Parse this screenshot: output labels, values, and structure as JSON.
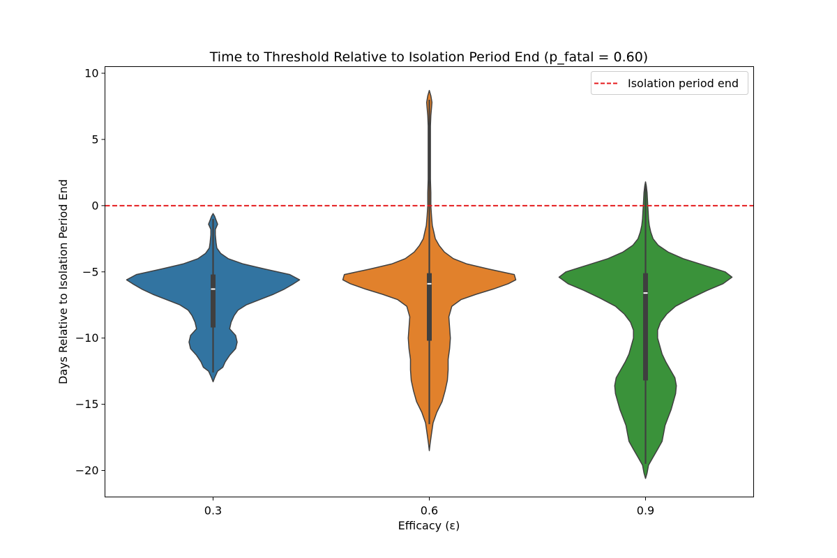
{
  "chart_data": {
    "type": "violin",
    "title": "Time to Threshold Relative to Isolation Period End (p_fatal = 0.60)",
    "xlabel": "Efficacy (ε)",
    "ylabel": "Days Relative to Isolation Period End",
    "categories": [
      "0.3",
      "0.6",
      "0.9"
    ],
    "ylim": [
      -22,
      10.5
    ],
    "yticks": [
      10,
      5,
      0,
      -5,
      -10,
      -15,
      -20
    ],
    "ytick_labels": [
      "10",
      "5",
      "0",
      "−5",
      "−10",
      "−15",
      "−20"
    ],
    "grid": false,
    "reference_line": {
      "y": 0,
      "label": "Isolation period end",
      "color": "#e41a1c",
      "style": "dashed"
    },
    "legend": {
      "position": "top-right",
      "entries": [
        "Isolation period end"
      ]
    },
    "colors": [
      "#3274a1",
      "#e1812c",
      "#3a923a"
    ],
    "edge_color": "#3f3f3f",
    "violins": [
      {
        "category": "0.3",
        "min": -12.6,
        "q1": -9.2,
        "median": -6.3,
        "q3": -5.2,
        "max": -1.0,
        "profile": [
          [
            -13.3,
            0.0
          ],
          [
            -13.0,
            0.02
          ],
          [
            -12.5,
            0.06
          ],
          [
            -12.2,
            0.13
          ],
          [
            -11.8,
            0.16
          ],
          [
            -11.3,
            0.22
          ],
          [
            -10.8,
            0.3
          ],
          [
            -10.3,
            0.32
          ],
          [
            -9.8,
            0.3
          ],
          [
            -9.3,
            0.22
          ],
          [
            -8.8,
            0.24
          ],
          [
            -8.3,
            0.28
          ],
          [
            -7.9,
            0.33
          ],
          [
            -7.5,
            0.44
          ],
          [
            -7.1,
            0.62
          ],
          [
            -6.7,
            0.8
          ],
          [
            -6.3,
            0.95
          ],
          [
            -5.9,
            1.07
          ],
          [
            -5.6,
            1.15
          ],
          [
            -5.2,
            1.02
          ],
          [
            -4.8,
            0.7
          ],
          [
            -4.4,
            0.4
          ],
          [
            -4.0,
            0.2
          ],
          [
            -3.6,
            0.1
          ],
          [
            -3.2,
            0.05
          ],
          [
            -2.8,
            0.04
          ],
          [
            -2.2,
            0.03
          ],
          [
            -1.8,
            0.03
          ],
          [
            -1.4,
            0.06
          ],
          [
            -1.1,
            0.04
          ],
          [
            -0.8,
            0.02
          ],
          [
            -0.6,
            0.0
          ]
        ]
      },
      {
        "category": "0.6",
        "min": -16.5,
        "q1": -10.2,
        "median": -5.9,
        "q3": -5.1,
        "max": 8.0,
        "profile": [
          [
            -18.5,
            0.0
          ],
          [
            -18.0,
            0.01
          ],
          [
            -17.2,
            0.03
          ],
          [
            -16.4,
            0.05
          ],
          [
            -15.6,
            0.1
          ],
          [
            -14.8,
            0.17
          ],
          [
            -14.0,
            0.21
          ],
          [
            -13.2,
            0.24
          ],
          [
            -12.4,
            0.25
          ],
          [
            -11.6,
            0.25
          ],
          [
            -10.8,
            0.27
          ],
          [
            -10.0,
            0.28
          ],
          [
            -9.2,
            0.27
          ],
          [
            -8.4,
            0.26
          ],
          [
            -7.6,
            0.3
          ],
          [
            -7.1,
            0.42
          ],
          [
            -6.7,
            0.62
          ],
          [
            -6.3,
            0.85
          ],
          [
            -5.9,
            1.05
          ],
          [
            -5.6,
            1.15
          ],
          [
            -5.2,
            1.13
          ],
          [
            -4.8,
            0.8
          ],
          [
            -4.4,
            0.5
          ],
          [
            -4.0,
            0.32
          ],
          [
            -3.5,
            0.2
          ],
          [
            -3.0,
            0.13
          ],
          [
            -2.5,
            0.08
          ],
          [
            -2.0,
            0.06
          ],
          [
            -1.5,
            0.04
          ],
          [
            -0.8,
            0.03
          ],
          [
            0.0,
            0.02
          ],
          [
            1.0,
            0.02
          ],
          [
            2.0,
            0.015
          ],
          [
            3.0,
            0.015
          ],
          [
            4.0,
            0.015
          ],
          [
            5.0,
            0.015
          ],
          [
            6.0,
            0.015
          ],
          [
            6.8,
            0.02
          ],
          [
            7.4,
            0.03
          ],
          [
            7.8,
            0.035
          ],
          [
            8.3,
            0.02
          ],
          [
            8.7,
            0.0
          ]
        ]
      },
      {
        "category": "0.9",
        "min": -19.5,
        "q1": -13.2,
        "median": -6.6,
        "q3": -5.1,
        "max": 1.5,
        "profile": [
          [
            -20.6,
            0.0
          ],
          [
            -20.2,
            0.02
          ],
          [
            -19.6,
            0.04
          ],
          [
            -19.0,
            0.1
          ],
          [
            -18.4,
            0.16
          ],
          [
            -17.8,
            0.22
          ],
          [
            -17.2,
            0.24
          ],
          [
            -16.6,
            0.26
          ],
          [
            -16.0,
            0.3
          ],
          [
            -15.4,
            0.34
          ],
          [
            -14.8,
            0.37
          ],
          [
            -14.2,
            0.4
          ],
          [
            -13.6,
            0.41
          ],
          [
            -13.0,
            0.39
          ],
          [
            -12.4,
            0.33
          ],
          [
            -11.8,
            0.27
          ],
          [
            -11.2,
            0.22
          ],
          [
            -10.6,
            0.19
          ],
          [
            -10.0,
            0.16
          ],
          [
            -9.4,
            0.16
          ],
          [
            -8.8,
            0.2
          ],
          [
            -8.2,
            0.28
          ],
          [
            -7.6,
            0.4
          ],
          [
            -7.0,
            0.6
          ],
          [
            -6.4,
            0.82
          ],
          [
            -5.9,
            1.03
          ],
          [
            -5.4,
            1.15
          ],
          [
            -5.0,
            1.06
          ],
          [
            -4.5,
            0.78
          ],
          [
            -4.0,
            0.5
          ],
          [
            -3.5,
            0.3
          ],
          [
            -3.0,
            0.17
          ],
          [
            -2.5,
            0.1
          ],
          [
            -2.0,
            0.07
          ],
          [
            -1.5,
            0.05
          ],
          [
            -1.0,
            0.04
          ],
          [
            -0.5,
            0.035
          ],
          [
            0.0,
            0.03
          ],
          [
            0.5,
            0.025
          ],
          [
            1.0,
            0.02
          ],
          [
            1.5,
            0.01
          ],
          [
            1.8,
            0.0
          ]
        ]
      }
    ]
  }
}
